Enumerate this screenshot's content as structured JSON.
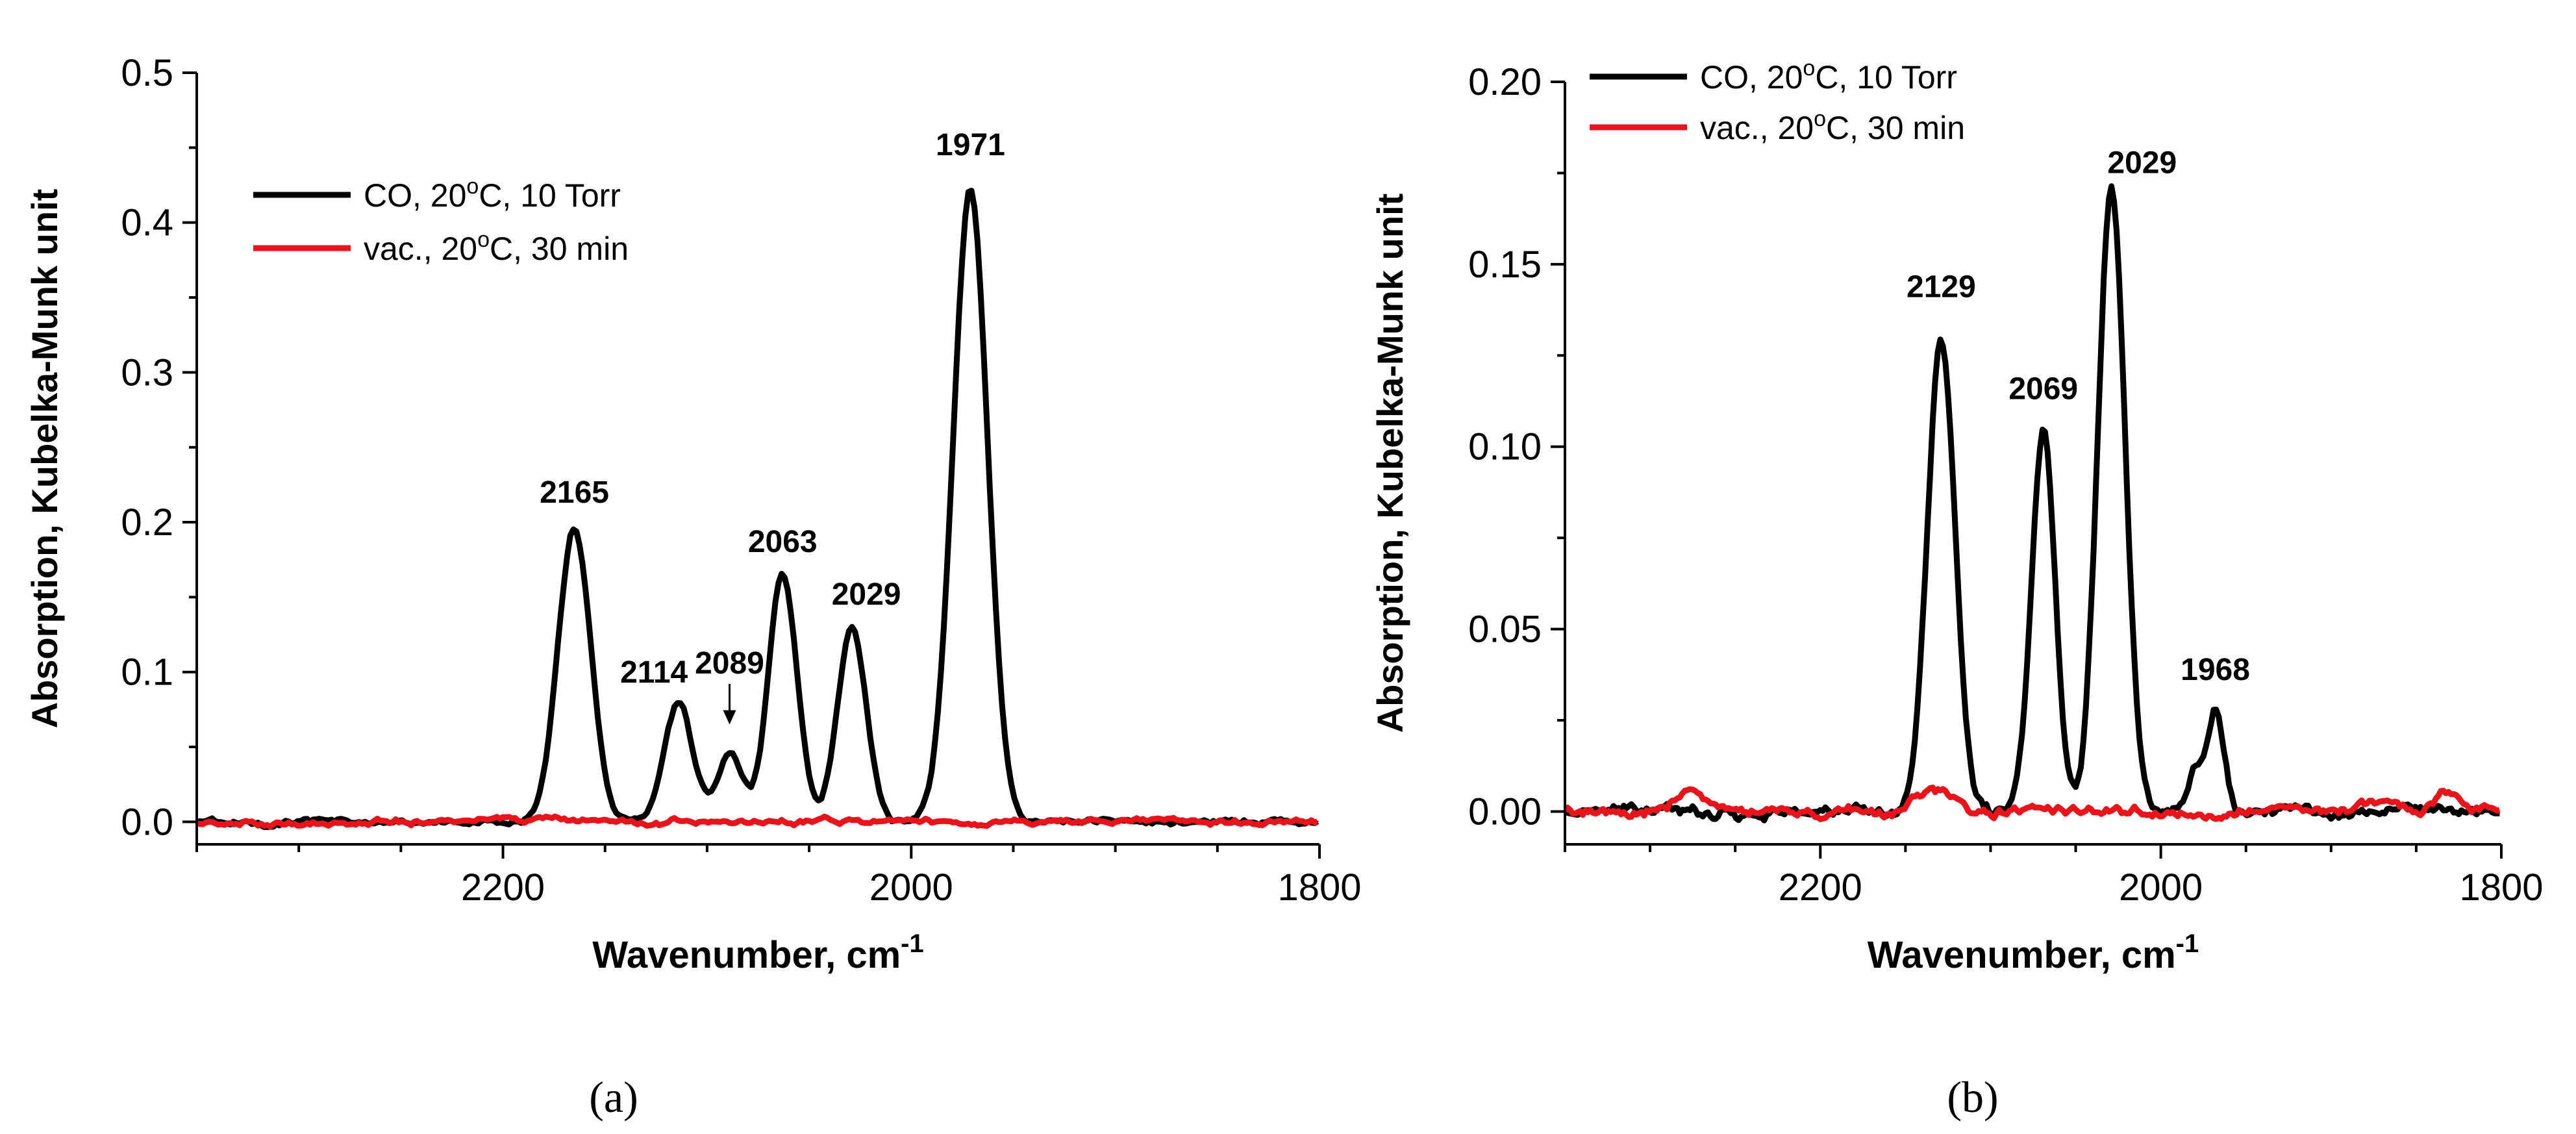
{
  "chart_data": [
    {
      "type": "line",
      "panel_label": "(a)",
      "xlabel": "Wavenumber, cm",
      "xlabel_sup": "-1",
      "ylabel": "Absorption, Kubelka-Munk unit",
      "xlim": [
        2350,
        1800
      ],
      "ylim": [
        -0.015,
        0.5
      ],
      "xticks": [
        2200,
        2000,
        1800
      ],
      "xtick_labels": [
        "2200",
        "2000",
        "1800"
      ],
      "yticks": [
        0.0,
        0.1,
        0.2,
        0.3,
        0.4,
        0.5
      ],
      "ytick_labels": [
        "0.0",
        "0.1",
        "0.2",
        "0.3",
        "0.4",
        "0.5"
      ],
      "legend_position": "top-left",
      "series": [
        {
          "name": "CO, 20°C, 10 Torr",
          "legend_main": "CO, 20",
          "legend_sup": "o",
          "legend_tail": "C, 10 Torr",
          "color": "#000000",
          "peaks": [
            {
              "center": 2165,
              "height": 0.196,
              "width": 8
            },
            {
              "center": 2114,
              "height": 0.08,
              "width": 7
            },
            {
              "center": 2089,
              "height": 0.046,
              "width": 6
            },
            {
              "center": 2063,
              "height": 0.166,
              "width": 7
            },
            {
              "center": 2029,
              "height": 0.131,
              "width": 7
            },
            {
              "center": 1971,
              "height": 0.422,
              "width": 8.5
            }
          ],
          "baseline_noise": 0.004
        },
        {
          "name": "vac., 20°C, 30 min",
          "legend_main": "vac., 20",
          "legend_sup": "o",
          "legend_tail": "C, 30 min",
          "color": "#e8141b",
          "peaks": [],
          "baseline_noise": 0.004
        }
      ],
      "annotations": [
        {
          "text": "1971",
          "x": 1971,
          "y": 0.445
        },
        {
          "text": "2165",
          "x": 2165,
          "y": 0.213
        },
        {
          "text": "2063",
          "x": 2063,
          "y": 0.18
        },
        {
          "text": "2029",
          "x": 2022,
          "y": 0.145
        },
        {
          "text": "2089",
          "x": 2089,
          "y": 0.099,
          "arrow_to_y": 0.065
        },
        {
          "text": "2114",
          "x": 2126,
          "y": 0.093
        }
      ]
    },
    {
      "type": "line",
      "panel_label": "(b)",
      "xlabel": "Wavenumber, cm",
      "xlabel_sup": "-1",
      "ylabel": "Absorption, Kubelka-Munk unit",
      "xlim": [
        2350,
        1800
      ],
      "ylim": [
        -0.009,
        0.2
      ],
      "xticks": [
        2200,
        2000,
        1800
      ],
      "xtick_labels": [
        "2200",
        "2000",
        "1800"
      ],
      "yticks": [
        0.0,
        0.05,
        0.1,
        0.15,
        0.2
      ],
      "ytick_labels": [
        "0.00",
        "0.05",
        "0.10",
        "0.15",
        "0.20"
      ],
      "legend_position": "top-left",
      "series": [
        {
          "name": "CO, 20°C, 10 Torr",
          "legend_main": "CO, 20",
          "legend_sup": "o",
          "legend_tail": "C, 10 Torr",
          "color": "#000000",
          "peaks": [
            {
              "center": 2129,
              "height": 0.13,
              "width": 8
            },
            {
              "center": 2069,
              "height": 0.104,
              "width": 7
            },
            {
              "center": 2029,
              "height": 0.173,
              "width": 8
            },
            {
              "center": 1968,
              "height": 0.028,
              "width": 5
            },
            {
              "center": 1980,
              "height": 0.012,
              "width": 4
            }
          ],
          "baseline_noise": 0.003
        },
        {
          "name": "vac., 20°C, 30 min",
          "legend_main": "vac., 20",
          "legend_sup": "o",
          "legend_tail": "C, 30 min",
          "color": "#e8141b",
          "peaks": [
            {
              "center": 2275,
              "height": 0.005,
              "width": 10
            },
            {
              "center": 2135,
              "height": 0.006,
              "width": 10
            },
            {
              "center": 1870,
              "height": 0.003,
              "width": 12
            },
            {
              "center": 1832,
              "height": 0.006,
              "width": 7
            }
          ],
          "baseline_noise": 0.0025
        }
      ],
      "annotations": [
        {
          "text": "2029",
          "x": 2011,
          "y": 0.175
        },
        {
          "text": "2129",
          "x": 2129,
          "y": 0.141
        },
        {
          "text": "2069",
          "x": 2069,
          "y": 0.113
        },
        {
          "text": "1968",
          "x": 1968,
          "y": 0.036
        }
      ]
    }
  ]
}
